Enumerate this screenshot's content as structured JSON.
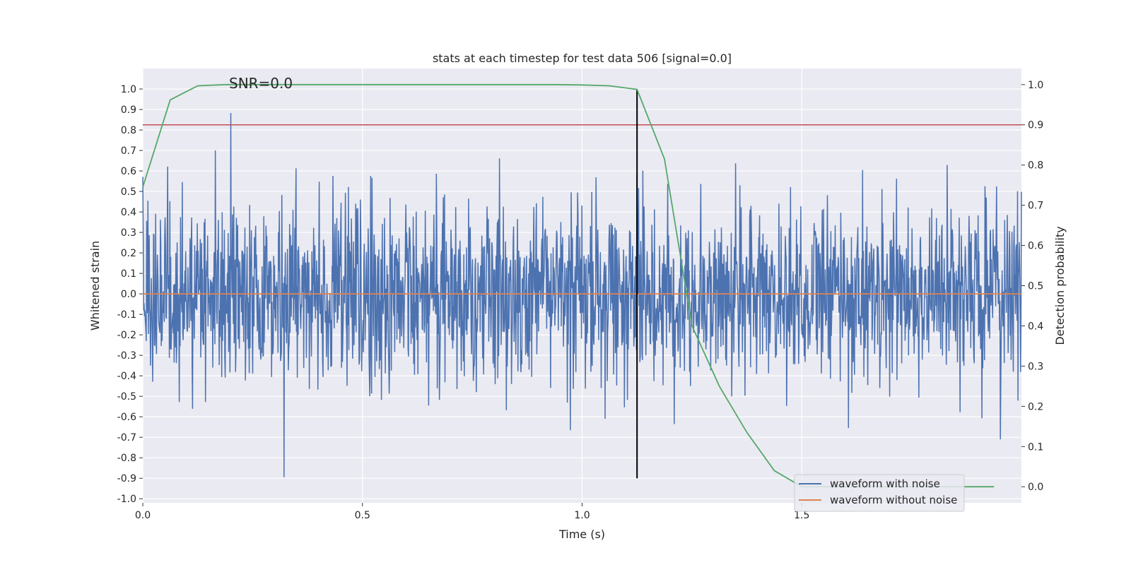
{
  "chart_data": {
    "type": "line",
    "title": "stats at each timestep for test data 506 [signal=0.0]",
    "annotation": "SNR=0.0",
    "xlabel": "Time (s)",
    "ylabel": "Whitened strain",
    "y2label": "Detection probability",
    "xlim": [
      0.0,
      2.0
    ],
    "ylim": [
      -1.02,
      1.1
    ],
    "y2lim": [
      -0.04,
      1.04
    ],
    "x_ticks": [
      "0.0",
      "0.5",
      "1.0",
      "1.5"
    ],
    "y_ticks": [
      "-1.0",
      "-0.9",
      "-0.8",
      "-0.7",
      "-0.6",
      "-0.5",
      "-0.4",
      "-0.3",
      "-0.2",
      "-0.1",
      "0.0",
      "0.1",
      "0.2",
      "0.3",
      "0.4",
      "0.5",
      "0.6",
      "0.7",
      "0.8",
      "0.9",
      "1.0"
    ],
    "y2_ticks": [
      "0.0",
      "0.1",
      "0.2",
      "0.3",
      "0.4",
      "0.5",
      "0.6",
      "0.7",
      "0.8",
      "0.9",
      "1.0"
    ],
    "grid": true,
    "legend_position": "lower-right",
    "series": [
      {
        "name": "waveform with noise",
        "axis": "left",
        "color": "#4c72b0",
        "kind": "noise",
        "x_range": [
          0.0,
          2.0
        ],
        "samples": 2048,
        "approx_std": 0.22,
        "approx_range": [
          -0.92,
          1.0
        ]
      },
      {
        "name": "waveform without noise",
        "axis": "left",
        "color": "#dd8452",
        "x": [
          0.0,
          2.0
        ],
        "y": [
          0.0,
          0.0
        ]
      },
      {
        "axis": "right",
        "color": "#55a868",
        "x": [
          0.0,
          0.0625,
          0.125,
          0.1875,
          0.25,
          0.3125,
          0.375,
          0.4375,
          0.5,
          0.5625,
          0.625,
          0.6875,
          0.75,
          0.8125,
          0.875,
          0.9375,
          1.0,
          1.0625,
          1.125,
          1.1875,
          1.25,
          1.3125,
          1.375,
          1.4375,
          1.5,
          1.5625,
          1.625,
          1.6875,
          1.75,
          1.8125,
          1.875,
          1.9375
        ],
        "y": [
          0.745,
          0.962,
          0.997,
          1.0,
          1.0,
          1.0,
          1.0,
          1.0,
          1.0,
          1.0,
          1.0,
          1.0,
          1.0,
          1.0,
          1.0,
          1.0,
          0.999,
          0.997,
          0.988,
          0.815,
          0.4,
          0.25,
          0.135,
          0.04,
          0.0,
          0.0,
          0.0,
          0.0,
          0.0,
          0.0,
          0.0,
          0.0
        ]
      }
    ],
    "reference_lines": [
      {
        "orientation": "horizontal",
        "axis": "right",
        "value": 0.9,
        "color": "#c44e52"
      },
      {
        "orientation": "vertical",
        "value": 1.125,
        "y_from": -0.9,
        "y_to": 1.0,
        "color": "#000000"
      }
    ]
  }
}
